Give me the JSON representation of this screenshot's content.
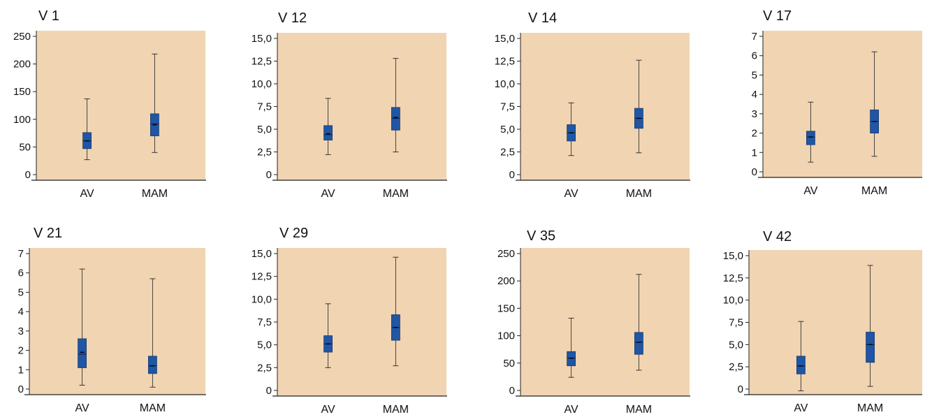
{
  "colors": {
    "background": "#ffffff",
    "plot_bg": "#f1d4b1",
    "box_fill": "#1f56a5",
    "box_stroke": "#1a3b70",
    "whisker": "#333333",
    "axis": "#222222",
    "text": "#111111"
  },
  "chart_data": [
    {
      "type": "box",
      "title": "V 1",
      "categories": [
        "AV",
        "MAM"
      ],
      "ylim": [
        0,
        250
      ],
      "yticks": [
        0,
        50,
        100,
        150,
        200,
        250
      ],
      "ytick_labels": [
        "0",
        "50",
        "100",
        "150",
        "200",
        "250"
      ],
      "boxes": [
        {
          "min": 27,
          "q1": 47,
          "median": 61,
          "q3": 76,
          "max": 137,
          "mean": 61
        },
        {
          "min": 40,
          "q1": 70,
          "median": 92,
          "q3": 110,
          "max": 218,
          "mean": 90
        }
      ]
    },
    {
      "type": "box",
      "title": "V 12",
      "categories": [
        "AV",
        "MAM"
      ],
      "ylim": [
        0,
        15
      ],
      "yticks": [
        0,
        2.5,
        5,
        7.5,
        10,
        12.5,
        15
      ],
      "ytick_labels": [
        "0",
        "2,5",
        "5,0",
        "7,5",
        "10,0",
        "12,5",
        "15,0"
      ],
      "boxes": [
        {
          "min": 2.2,
          "q1": 3.8,
          "median": 4.4,
          "q3": 5.4,
          "max": 8.4,
          "mean": 4.5
        },
        {
          "min": 2.5,
          "q1": 4.9,
          "median": 6.2,
          "q3": 7.4,
          "max": 12.8,
          "mean": 6.3
        }
      ]
    },
    {
      "type": "box",
      "title": "V 14",
      "categories": [
        "AV",
        "MAM"
      ],
      "ylim": [
        0,
        15
      ],
      "yticks": [
        0,
        2.5,
        5,
        7.5,
        10,
        12.5,
        15
      ],
      "ytick_labels": [
        "0",
        "2,5",
        "5,0",
        "7,5",
        "10,0",
        "12,5",
        "15,0"
      ],
      "boxes": [
        {
          "min": 2.1,
          "q1": 3.7,
          "median": 4.6,
          "q3": 5.5,
          "max": 7.9,
          "mean": 4.6
        },
        {
          "min": 2.4,
          "q1": 5.1,
          "median": 6.2,
          "q3": 7.3,
          "max": 12.6,
          "mean": 6.2
        }
      ]
    },
    {
      "type": "box",
      "title": "V 17",
      "categories": [
        "AV",
        "MAM"
      ],
      "ylim": [
        0,
        7
      ],
      "yticks": [
        0,
        1,
        2,
        3,
        4,
        5,
        6,
        7
      ],
      "ytick_labels": [
        "0",
        "1",
        "2",
        "3",
        "4",
        "5",
        "6",
        "7"
      ],
      "boxes": [
        {
          "min": 0.5,
          "q1": 1.4,
          "median": 1.8,
          "q3": 2.1,
          "max": 3.6,
          "mean": 1.8
        },
        {
          "min": 0.8,
          "q1": 2.0,
          "median": 2.6,
          "q3": 3.2,
          "max": 6.2,
          "mean": 2.6
        }
      ]
    },
    {
      "type": "box",
      "title": "V 21",
      "categories": [
        "AV",
        "MAM"
      ],
      "ylim": [
        0,
        7
      ],
      "yticks": [
        0,
        1,
        2,
        3,
        4,
        5,
        6,
        7
      ],
      "ytick_labels": [
        "0",
        "1",
        "2",
        "3",
        "4",
        "5",
        "6",
        "7"
      ],
      "boxes": [
        {
          "min": 0.2,
          "q1": 1.1,
          "median": 1.8,
          "q3": 2.6,
          "max": 6.2,
          "mean": 1.9
        },
        {
          "min": 0.1,
          "q1": 0.8,
          "median": 1.2,
          "q3": 1.7,
          "max": 5.7,
          "mean": 1.2
        }
      ]
    },
    {
      "type": "box",
      "title": "V 29",
      "categories": [
        "AV",
        "MAM"
      ],
      "ylim": [
        0,
        15
      ],
      "yticks": [
        0,
        2.5,
        5,
        7.5,
        10,
        12.5,
        15
      ],
      "ytick_labels": [
        "0",
        "2,5",
        "5,0",
        "7,5",
        "10,0",
        "12,5",
        "15,0"
      ],
      "boxes": [
        {
          "min": 2.5,
          "q1": 4.2,
          "median": 5.1,
          "q3": 6.0,
          "max": 9.5,
          "mean": 5.1
        },
        {
          "min": 2.7,
          "q1": 5.5,
          "median": 6.9,
          "q3": 8.3,
          "max": 14.6,
          "mean": 6.9
        }
      ]
    },
    {
      "type": "box",
      "title": "V 35",
      "categories": [
        "AV",
        "MAM"
      ],
      "ylim": [
        0,
        250
      ],
      "yticks": [
        0,
        50,
        100,
        150,
        200,
        250
      ],
      "ytick_labels": [
        "0",
        "50",
        "100",
        "150",
        "200",
        "250"
      ],
      "boxes": [
        {
          "min": 24,
          "q1": 45,
          "median": 59,
          "q3": 71,
          "max": 132,
          "mean": 59
        },
        {
          "min": 37,
          "q1": 66,
          "median": 88,
          "q3": 106,
          "max": 212,
          "mean": 88
        }
      ]
    },
    {
      "type": "box",
      "title": "V 42",
      "categories": [
        "AV",
        "MAM"
      ],
      "ylim": [
        0,
        15
      ],
      "yticks": [
        0,
        2.5,
        5,
        7.5,
        10,
        12.5,
        15
      ],
      "ytick_labels": [
        "0",
        "2,5",
        "5,0",
        "7,5",
        "10,0",
        "12,5",
        "15,0"
      ],
      "boxes": [
        {
          "min": -0.2,
          "q1": 1.7,
          "median": 2.6,
          "q3": 3.7,
          "max": 7.6,
          "mean": 2.6
        },
        {
          "min": 0.3,
          "q1": 3.0,
          "median": 5.0,
          "q3": 6.4,
          "max": 13.9,
          "mean": 5.0
        }
      ]
    }
  ]
}
